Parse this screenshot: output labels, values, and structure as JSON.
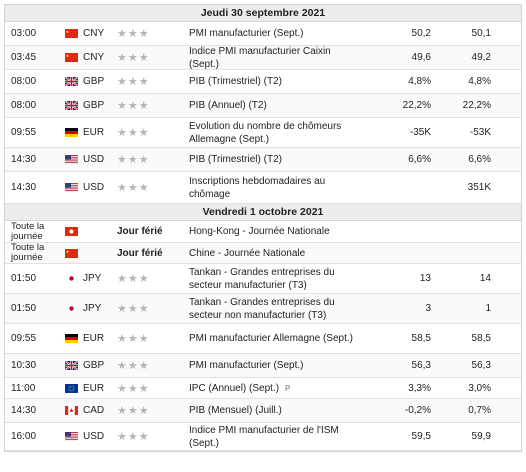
{
  "days": [
    {
      "label": "Jeudi 30 septembre 2021",
      "rows": [
        {
          "time": "03:00",
          "flag": "cn",
          "currency": "CNY",
          "stars": 3,
          "event": "PMI manufacturier (Sept.)",
          "actual": "50,2",
          "prev": "50,1"
        },
        {
          "time": "03:45",
          "flag": "cn",
          "currency": "CNY",
          "stars": 3,
          "event": "Indice PMI manufacturier Caixin (Sept.)",
          "actual": "49,6",
          "prev": "49,2"
        },
        {
          "time": "08:00",
          "flag": "gb",
          "currency": "GBP",
          "stars": 3,
          "event": "PIB (Trimestriel) (T2)",
          "actual": "4,8%",
          "prev": "4,8%"
        },
        {
          "time": "08:00",
          "flag": "gb",
          "currency": "GBP",
          "stars": 3,
          "event": "PIB (Annuel) (T2)",
          "actual": "22,2%",
          "prev": "22,2%"
        },
        {
          "time": "09:55",
          "flag": "de",
          "currency": "EUR",
          "stars": 3,
          "event": "Evolution du nombre de chômeurs Allemagne (Sept.)",
          "actual": "-35K",
          "prev": "-53K"
        },
        {
          "time": "14:30",
          "flag": "us",
          "currency": "USD",
          "stars": 3,
          "event": "PIB (Trimestriel) (T2)",
          "actual": "6,6%",
          "prev": "6,6%"
        },
        {
          "time": "14:30",
          "flag": "us",
          "currency": "USD",
          "stars": 3,
          "event": "Inscriptions hebdomadaires au chômage",
          "actual": "",
          "prev": "351K"
        }
      ]
    },
    {
      "label": "Vendredi 1 octobre 2021",
      "rows": [
        {
          "time": "Toute la journée",
          "flag": "hk",
          "currency": "",
          "holiday": "Jour férié",
          "event": "Hong-Kong - Journée Nationale",
          "actual": "",
          "prev": ""
        },
        {
          "time": "Toute la journée",
          "flag": "cn",
          "currency": "",
          "holiday": "Jour férié",
          "event": "Chine - Journée Nationale",
          "actual": "",
          "prev": ""
        },
        {
          "time": "01:50",
          "flag": "jp",
          "currency": "JPY",
          "stars": 3,
          "event": "Tankan - Grandes entreprises du secteur manufacturier (T3)",
          "actual": "13",
          "prev": "14"
        },
        {
          "time": "01:50",
          "flag": "jp",
          "currency": "JPY",
          "stars": 3,
          "event": "Tankan - Grandes entreprises du secteur non manufacturier (T3)",
          "actual": "3",
          "prev": "1"
        },
        {
          "time": "09:55",
          "flag": "de",
          "currency": "EUR",
          "stars": 3,
          "event": "PMI manufacturier Allemagne (Sept.)",
          "actual": "58,5",
          "prev": "58,5"
        },
        {
          "time": "10:30",
          "flag": "gb",
          "currency": "GBP",
          "stars": 3,
          "event": "PMI manufacturier (Sept.)",
          "actual": "56,3",
          "prev": "56,3"
        },
        {
          "time": "11:00",
          "flag": "eu",
          "currency": "EUR",
          "stars": 3,
          "event": "IPC (Annuel) (Sept.)",
          "pmark": "P",
          "actual": "3,3%",
          "prev": "3,0%"
        },
        {
          "time": "14:30",
          "flag": "ca",
          "currency": "CAD",
          "stars": 3,
          "event": "PIB (Mensuel) (Juill.)",
          "actual": "-0,2%",
          "prev": "0,7%"
        },
        {
          "time": "16:00",
          "flag": "us",
          "currency": "USD",
          "stars": 3,
          "event": "Indice PMI manufacturier de l'ISM (Sept.)",
          "actual": "59,5",
          "prev": "59,9"
        }
      ]
    }
  ],
  "colors": {
    "star": "#b5b5b5",
    "header_bg": "#ececec"
  }
}
